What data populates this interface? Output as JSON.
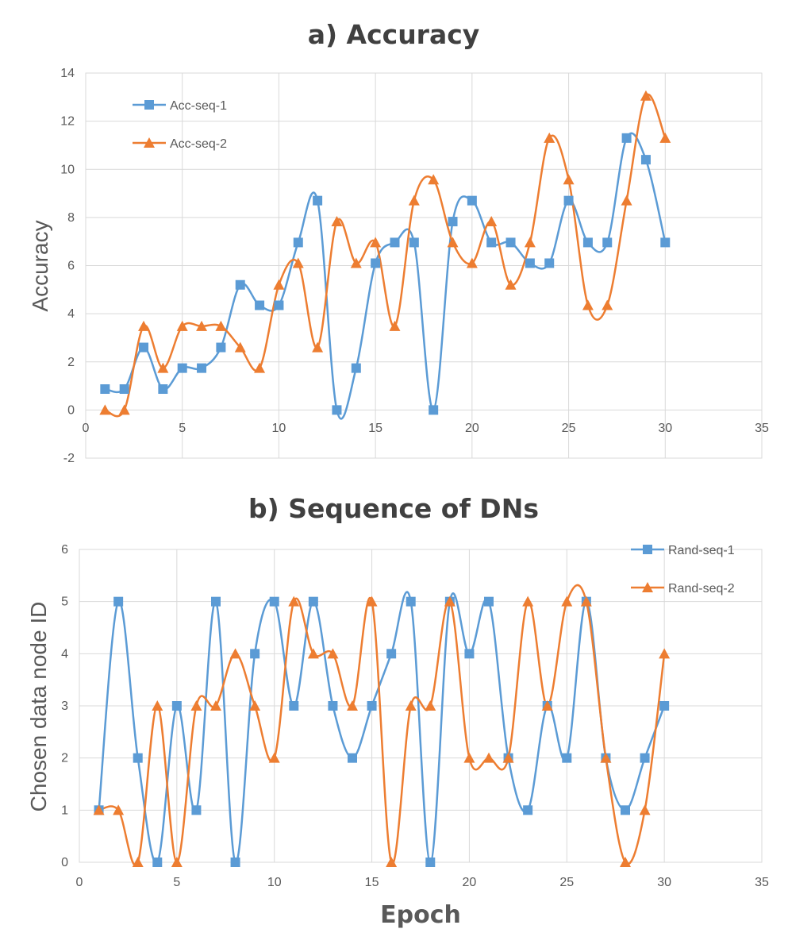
{
  "colors": {
    "series1": "#5B9BD5",
    "series2": "#ED7D31",
    "grid": "#D9D9D9",
    "text": "#595959"
  },
  "chart_data": [
    {
      "type": "line",
      "title": "a) Accuracy",
      "xlabel": "",
      "ylabel": "Accuracy",
      "xlim": [
        0,
        35
      ],
      "ylim": [
        -2,
        14
      ],
      "xticks": [
        0,
        5,
        10,
        15,
        20,
        25,
        30,
        35
      ],
      "yticks": [
        -2,
        0,
        2,
        4,
        6,
        8,
        10,
        12,
        14
      ],
      "legend_position": "top-left",
      "series": [
        {
          "name": "Acc-seq-1",
          "marker": "square",
          "x": [
            1,
            2,
            3,
            4,
            5,
            6,
            7,
            8,
            9,
            10,
            11,
            12,
            13,
            14,
            15,
            16,
            17,
            18,
            19,
            20,
            21,
            22,
            23,
            24,
            25,
            26,
            27,
            28,
            29,
            30
          ],
          "values": [
            0.87,
            0.87,
            2.6,
            0.87,
            1.74,
            1.74,
            2.6,
            5.2,
            4.35,
            4.35,
            6.96,
            8.7,
            0,
            1.74,
            6.1,
            6.96,
            6.96,
            0,
            7.83,
            8.7,
            6.96,
            6.96,
            6.1,
            6.1,
            8.7,
            6.96,
            6.96,
            11.3,
            10.4,
            6.96
          ]
        },
        {
          "name": "Acc-seq-2",
          "marker": "triangle",
          "x": [
            1,
            2,
            3,
            4,
            5,
            6,
            7,
            8,
            9,
            10,
            11,
            12,
            13,
            14,
            15,
            16,
            17,
            18,
            19,
            20,
            21,
            22,
            23,
            24,
            25,
            26,
            27,
            28,
            29,
            30
          ],
          "values": [
            0,
            0,
            3.48,
            1.74,
            3.48,
            3.48,
            3.48,
            2.6,
            1.74,
            5.2,
            6.1,
            2.6,
            7.83,
            6.1,
            6.96,
            3.48,
            8.7,
            9.57,
            6.96,
            6.1,
            7.83,
            5.2,
            6.96,
            11.3,
            9.57,
            4.35,
            4.35,
            8.7,
            13.05,
            11.3
          ]
        }
      ]
    },
    {
      "type": "line",
      "title": "b) Sequence of DNs",
      "xlabel": "Epoch",
      "ylabel": "Chosen data node ID",
      "xlim": [
        0,
        35
      ],
      "ylim": [
        0,
        6
      ],
      "xticks": [
        0,
        5,
        10,
        15,
        20,
        25,
        30,
        35
      ],
      "yticks": [
        0,
        1,
        2,
        3,
        4,
        5,
        6
      ],
      "legend_position": "top-right",
      "series": [
        {
          "name": "Rand-seq-1",
          "marker": "square",
          "x": [
            1,
            2,
            3,
            4,
            5,
            6,
            7,
            8,
            9,
            10,
            11,
            12,
            13,
            14,
            15,
            16,
            17,
            18,
            19,
            20,
            21,
            22,
            23,
            24,
            25,
            26,
            27,
            28,
            29,
            30
          ],
          "values": [
            1,
            5,
            2,
            0,
            3,
            1,
            5,
            0,
            4,
            5,
            3,
            5,
            3,
            2,
            3,
            4,
            5,
            0,
            5,
            4,
            5,
            2,
            1,
            3,
            2,
            5,
            2,
            1,
            2,
            3
          ]
        },
        {
          "name": "Rand-seq-2",
          "marker": "triangle",
          "x": [
            1,
            2,
            3,
            4,
            5,
            6,
            7,
            8,
            9,
            10,
            11,
            12,
            13,
            14,
            15,
            16,
            17,
            18,
            19,
            20,
            21,
            22,
            23,
            24,
            25,
            26,
            27,
            28,
            29,
            30
          ],
          "values": [
            1,
            1,
            0,
            3,
            0,
            3,
            3,
            4,
            3,
            2,
            5,
            4,
            4,
            3,
            5,
            0,
            3,
            3,
            5,
            2,
            2,
            2,
            5,
            3,
            5,
            5,
            2,
            0,
            1,
            4
          ]
        }
      ]
    }
  ]
}
